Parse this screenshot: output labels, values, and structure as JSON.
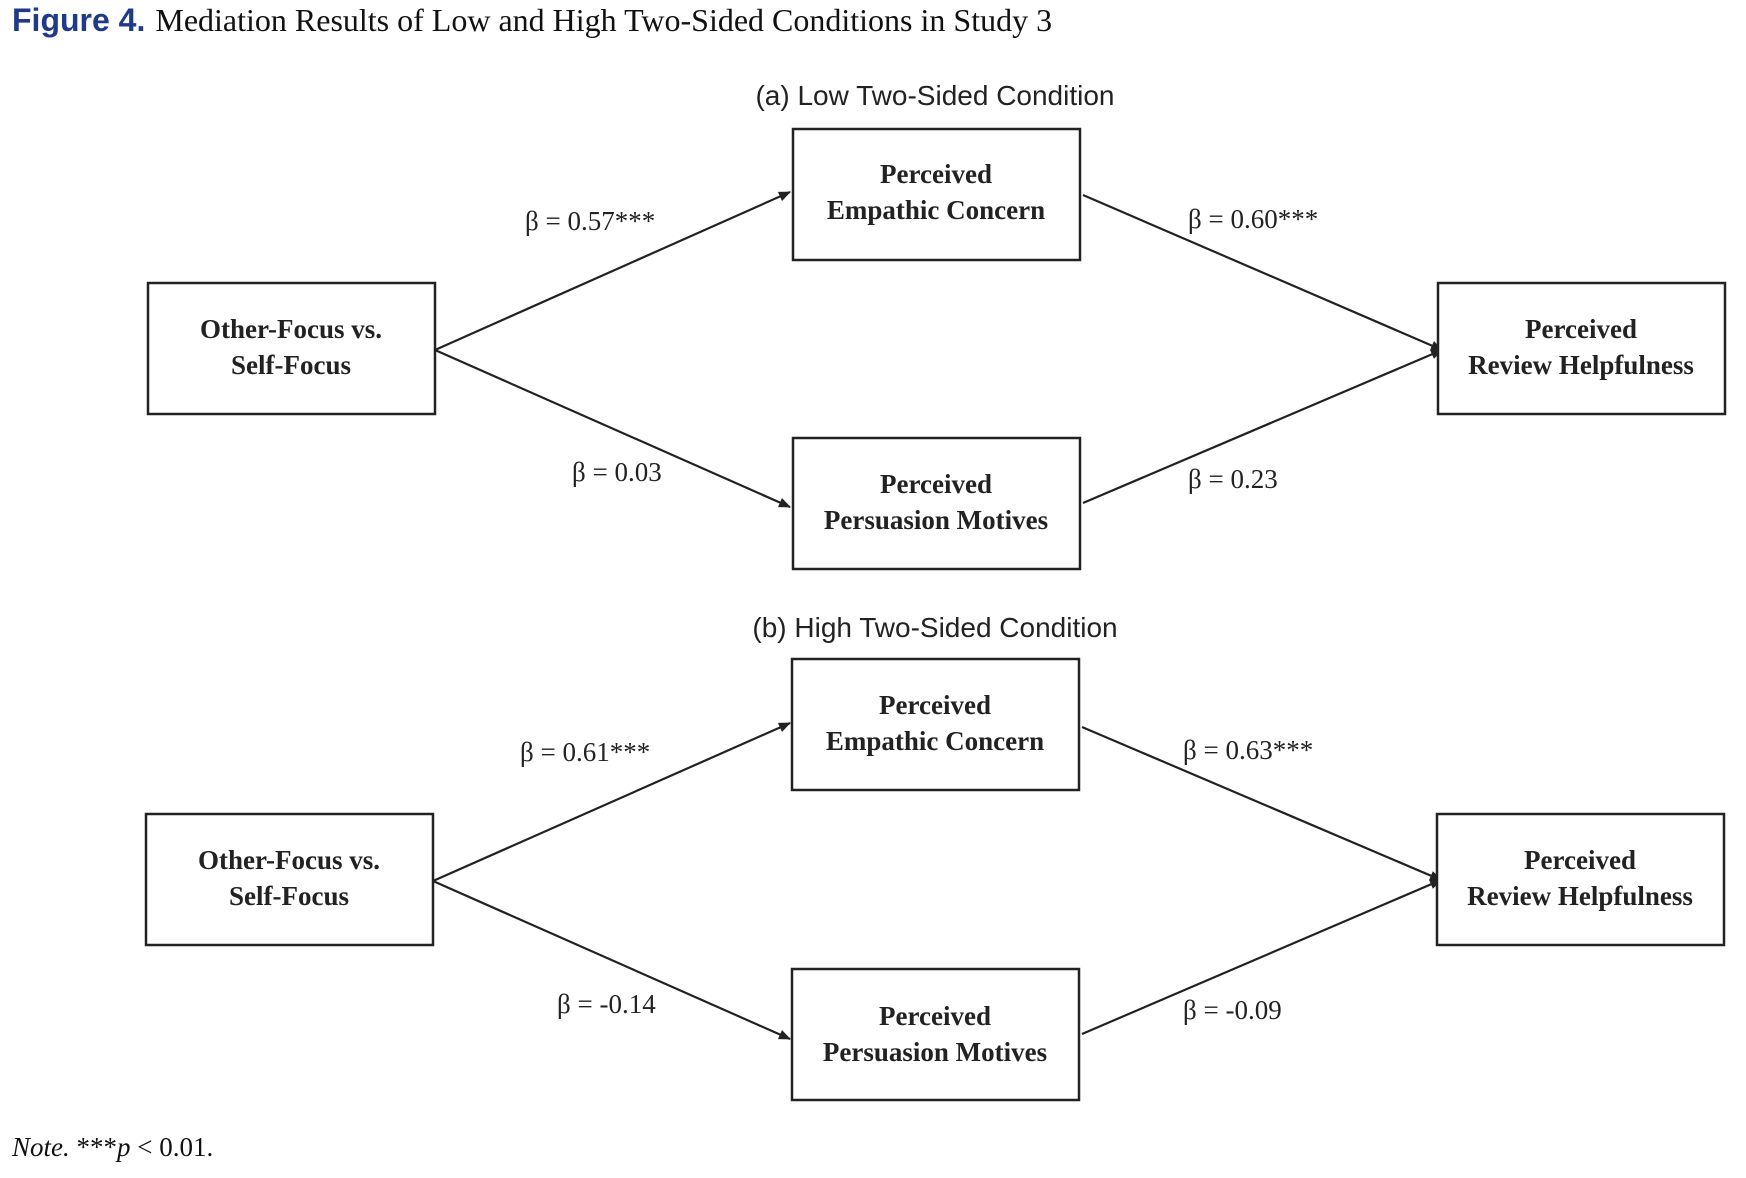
{
  "figure": {
    "label": "Figure 4.",
    "title": "Mediation Results of Low and High Two-Sided Conditions in Study 3"
  },
  "panels": [
    {
      "title": "(a) Low Two-Sided Condition",
      "boxes": {
        "predictor": [
          "Other-Focus vs.",
          "Self-Focus"
        ],
        "mediator_top": [
          "Perceived",
          "Empathic Concern"
        ],
        "mediator_bottom": [
          "Perceived",
          "Persuasion Motives"
        ],
        "outcome": [
          "Perceived",
          "Review Helpfulness"
        ]
      },
      "paths": {
        "a1": "β = 0.57***",
        "b1": "β = 0.60***",
        "a2": "β = 0.03",
        "b2": "β = 0.23"
      }
    },
    {
      "title": "(b) High Two-Sided Condition",
      "boxes": {
        "predictor": [
          "Other-Focus vs.",
          "Self-Focus"
        ],
        "mediator_top": [
          "Perceived",
          "Empathic Concern"
        ],
        "mediator_bottom": [
          "Perceived",
          "Persuasion Motives"
        ],
        "outcome": [
          "Perceived",
          "Review Helpfulness"
        ]
      },
      "paths": {
        "a1": "β = 0.61***",
        "b1": "β = 0.63***",
        "a2": "β = -0.14",
        "b2": "β = -0.09"
      }
    }
  ],
  "note": {
    "label": "Note.",
    "stars": "***",
    "p": "p",
    "rest": " < 0.01."
  }
}
